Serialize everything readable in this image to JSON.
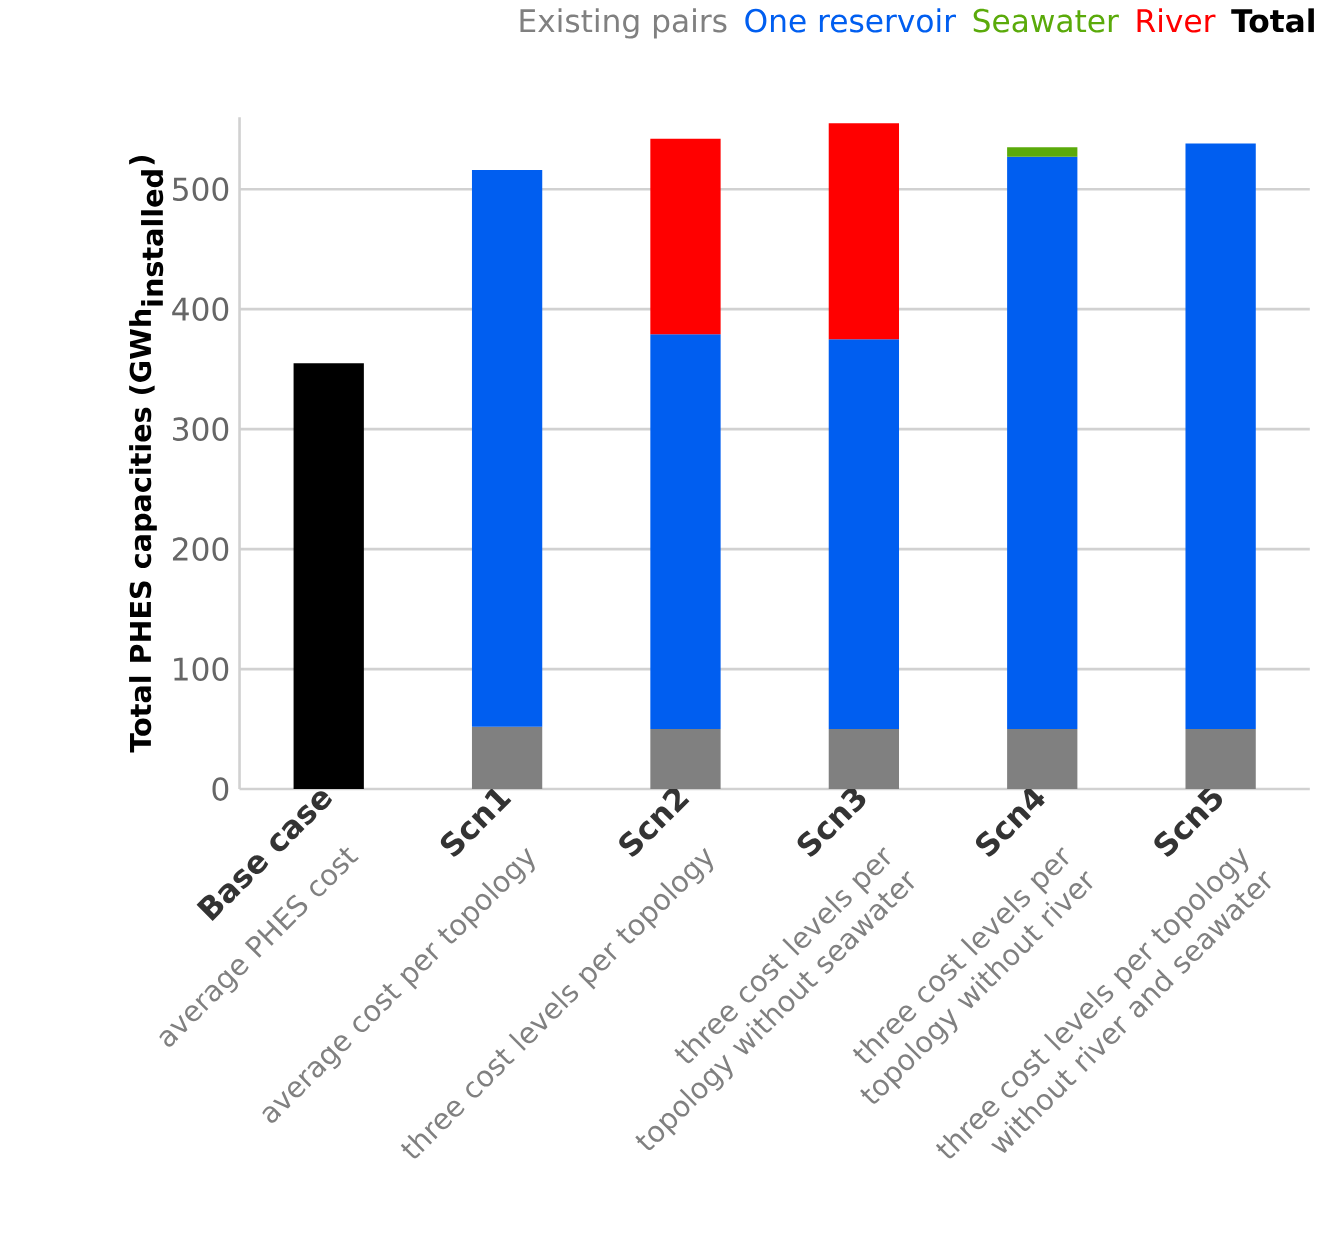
{
  "chart_data": {
    "type": "bar",
    "stacked": true,
    "ylabel": "\\textbf{Total PHES capacities (GWh}_{\\textbf{installed}}\\textbf{)}",
    "categories": [
      "Base case",
      "Scn1",
      "Scn2",
      "Scn3",
      "Scn4",
      "Scn5"
    ],
    "annotations": [
      "average PHES cost",
      "average cost per topology",
      "three cost levels per topology",
      "three cost levels per topology without seawater",
      "three cost levels per topology without river",
      "three cost levels per topology without river and seawater"
    ],
    "series": [
      {
        "name": "Existing pairs",
        "color": "#808080",
        "values": [
          null,
          52,
          50,
          50,
          50,
          50
        ]
      },
      {
        "name": "One reservoir",
        "color": "#005ef0",
        "values": [
          null,
          464,
          329,
          325,
          477,
          488
        ]
      },
      {
        "name": "Seawater",
        "color": "#5aaa0a",
        "values": [
          null,
          null,
          null,
          null,
          8,
          null
        ]
      },
      {
        "name": "River",
        "color": "#ff0000",
        "values": [
          null,
          null,
          163,
          180,
          null,
          null
        ]
      },
      {
        "name": "**Total**",
        "color": "#000000",
        "values": [
          355,
          null,
          null,
          null,
          null,
          null
        ]
      }
    ],
    "ylim": [
      0,
      560
    ],
    "yticks": [
      0,
      100,
      200,
      300,
      400,
      500
    ],
    "grid": "y",
    "legend": "top right"
  }
}
